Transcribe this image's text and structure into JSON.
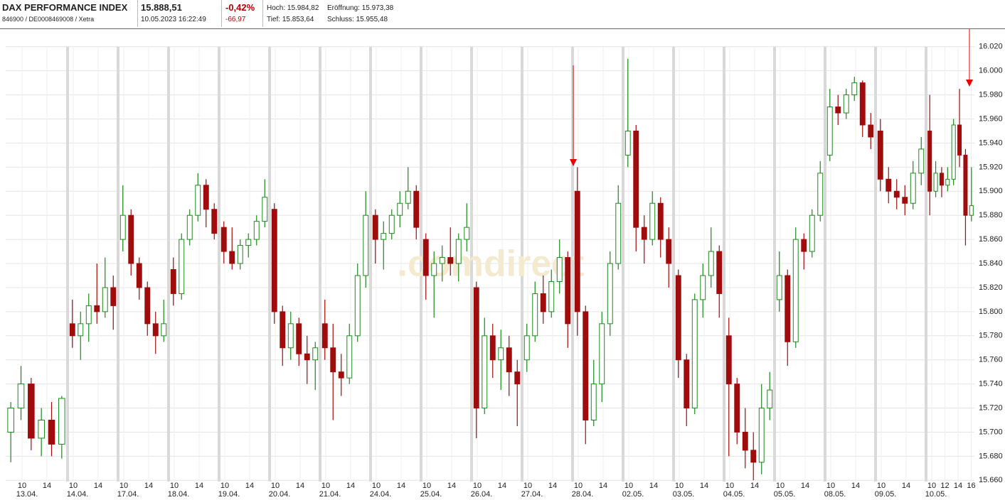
{
  "header": {
    "name": "DAX PERFORMANCE INDEX",
    "ids": "846900 / DE0008469008 / Xetra",
    "price": "15.888,51",
    "timestamp": "10.05.2023 16:22:49",
    "change_pct": "-0,42%",
    "change_abs": "-66,97",
    "high": "Hoch: 15.984,82",
    "open": "Eröffnung: 15.973,38",
    "low": "Tief: 15.853,64",
    "close": "Schluss: 15.955,48"
  },
  "chart_data": {
    "type": "candlestick",
    "watermark": ".comdirect",
    "up_color": "#1a8a1a",
    "down_color": "#a00c0c",
    "ylim": [
      15659,
      16034
    ],
    "yticks": [
      {
        "value": 15660,
        "label": "15.660"
      },
      {
        "value": 15680,
        "label": "15.680"
      },
      {
        "value": 15700,
        "label": "15.700"
      },
      {
        "value": 15720,
        "label": "15.720"
      },
      {
        "value": 15740,
        "label": "15.740"
      },
      {
        "value": 15760,
        "label": "15.760"
      },
      {
        "value": 15780,
        "label": "15.780"
      },
      {
        "value": 15800,
        "label": "15.800"
      },
      {
        "value": 15820,
        "label": "15.820"
      },
      {
        "value": 15840,
        "label": "15.840"
      },
      {
        "value": 15860,
        "label": "15.860"
      },
      {
        "value": 15880,
        "label": "15.880"
      },
      {
        "value": 15900,
        "label": "15.900"
      },
      {
        "value": 15920,
        "label": "15.920"
      },
      {
        "value": 15940,
        "label": "15.940"
      },
      {
        "value": 15960,
        "label": "15.960"
      },
      {
        "value": 15980,
        "label": "15.980"
      },
      {
        "value": 16000,
        "label": "16.000"
      },
      {
        "value": 16020,
        "label": "16.020"
      }
    ],
    "days": [
      {
        "label": "13.04.",
        "ticks": [
          "10",
          "14"
        ],
        "candles": [
          [
            15700,
            15725,
            15675,
            15720
          ],
          [
            15720,
            15755,
            15710,
            15740
          ],
          [
            15740,
            15745,
            15685,
            15695
          ],
          [
            15695,
            15720,
            15680,
            15710
          ],
          [
            15710,
            15725,
            15680,
            15690
          ],
          [
            15690,
            15730,
            15678,
            15728
          ]
        ]
      },
      {
        "label": "14.04.",
        "ticks": [
          "10",
          "14"
        ],
        "candles": [
          [
            15790,
            15810,
            15770,
            15780
          ],
          [
            15780,
            15800,
            15760,
            15790
          ],
          [
            15790,
            15815,
            15775,
            15805
          ],
          [
            15805,
            15840,
            15790,
            15800
          ],
          [
            15800,
            15845,
            15795,
            15820
          ],
          [
            15820,
            15830,
            15785,
            15805
          ]
        ]
      },
      {
        "label": "17.04.",
        "ticks": [
          "10",
          "14"
        ],
        "candles": [
          [
            15860,
            15905,
            15850,
            15880
          ],
          [
            15880,
            15885,
            15830,
            15840
          ],
          [
            15840,
            15845,
            15810,
            15820
          ],
          [
            15820,
            15825,
            15780,
            15790
          ],
          [
            15790,
            15800,
            15765,
            15780
          ],
          [
            15780,
            15810,
            15775,
            15790
          ]
        ]
      },
      {
        "label": "18.04.",
        "ticks": [
          "10",
          "14"
        ],
        "candles": [
          [
            15835,
            15845,
            15805,
            15815
          ],
          [
            15815,
            15865,
            15810,
            15860
          ],
          [
            15860,
            15885,
            15855,
            15880
          ],
          [
            15880,
            15915,
            15875,
            15905
          ],
          [
            15905,
            15910,
            15870,
            15885
          ],
          [
            15885,
            15890,
            15860,
            15865
          ]
        ]
      },
      {
        "label": "19.04.",
        "ticks": [
          "10",
          "14"
        ],
        "candles": [
          [
            15870,
            15875,
            15840,
            15850
          ],
          [
            15850,
            15870,
            15835,
            15840
          ],
          [
            15840,
            15860,
            15835,
            15855
          ],
          [
            15855,
            15865,
            15845,
            15860
          ],
          [
            15860,
            15880,
            15855,
            15875
          ],
          [
            15875,
            15910,
            15870,
            15895
          ]
        ]
      },
      {
        "label": "20.04.",
        "ticks": [
          "10",
          "14"
        ],
        "candles": [
          [
            15885,
            15890,
            15790,
            15800
          ],
          [
            15800,
            15805,
            15755,
            15770
          ],
          [
            15770,
            15800,
            15760,
            15790
          ],
          [
            15790,
            15795,
            15755,
            15765
          ],
          [
            15765,
            15780,
            15740,
            15760
          ],
          [
            15760,
            15775,
            15735,
            15770
          ]
        ]
      },
      {
        "label": "21.04.",
        "ticks": [
          "10",
          "14"
        ],
        "candles": [
          [
            15790,
            15810,
            15760,
            15770
          ],
          [
            15770,
            15790,
            15710,
            15750
          ],
          [
            15750,
            15765,
            15730,
            15745
          ],
          [
            15745,
            15790,
            15740,
            15780
          ],
          [
            15780,
            15840,
            15775,
            15830
          ],
          [
            15830,
            15900,
            15820,
            15880
          ]
        ]
      },
      {
        "label": "24.04.",
        "ticks": [
          "10",
          "14"
        ],
        "candles": [
          [
            15880,
            15885,
            15840,
            15860
          ],
          [
            15860,
            15875,
            15835,
            15865
          ],
          [
            15865,
            15885,
            15860,
            15880
          ],
          [
            15880,
            15900,
            15870,
            15890
          ],
          [
            15890,
            15920,
            15885,
            15900
          ],
          [
            15900,
            15905,
            15860,
            15870
          ]
        ]
      },
      {
        "label": "25.04.",
        "ticks": [
          "10",
          "14"
        ],
        "candles": [
          [
            15860,
            15865,
            15810,
            15830
          ],
          [
            15830,
            15850,
            15795,
            15840
          ],
          [
            15840,
            15855,
            15825,
            15845
          ],
          [
            15845,
            15870,
            15830,
            15840
          ],
          [
            15840,
            15865,
            15825,
            15860
          ],
          [
            15860,
            15890,
            15850,
            15870
          ]
        ]
      },
      {
        "label": "26.04.",
        "ticks": [
          "10",
          "14"
        ],
        "candles": [
          [
            15820,
            15825,
            15695,
            15720
          ],
          [
            15720,
            15795,
            15715,
            15780
          ],
          [
            15780,
            15790,
            15745,
            15760
          ],
          [
            15760,
            15785,
            15735,
            15770
          ],
          [
            15770,
            15780,
            15730,
            15750
          ],
          [
            15750,
            15760,
            15705,
            15740
          ]
        ]
      },
      {
        "label": "27.04.",
        "ticks": [
          "10",
          "14"
        ],
        "candles": [
          [
            15760,
            15790,
            15750,
            15780
          ],
          [
            15780,
            15825,
            15775,
            15815
          ],
          [
            15815,
            15830,
            15790,
            15800
          ],
          [
            15800,
            15835,
            15795,
            15825
          ],
          [
            15825,
            15860,
            15815,
            15845
          ],
          [
            15845,
            15850,
            15770,
            15790
          ]
        ]
      },
      {
        "label": "28.04.",
        "ticks": [
          "10",
          "14"
        ],
        "candles": [
          [
            15900,
            15920,
            15780,
            15800
          ],
          [
            15800,
            15805,
            15690,
            15710
          ],
          [
            15710,
            15760,
            15705,
            15740
          ],
          [
            15740,
            15800,
            15725,
            15790
          ],
          [
            15790,
            15850,
            15780,
            15840
          ],
          [
            15840,
            15905,
            15835,
            15890
          ]
        ]
      },
      {
        "label": "02.05.",
        "ticks": [
          "10",
          "14"
        ],
        "candles": [
          [
            15930,
            16010,
            15920,
            15950
          ],
          [
            15950,
            15955,
            15850,
            15870
          ],
          [
            15870,
            15880,
            15840,
            15860
          ],
          [
            15860,
            15900,
            15855,
            15890
          ],
          [
            15890,
            15895,
            15845,
            15860
          ],
          [
            15860,
            15870,
            15820,
            15840
          ]
        ]
      },
      {
        "label": "03.05.",
        "ticks": [
          "10",
          "14"
        ],
        "candles": [
          [
            15830,
            15835,
            15745,
            15760
          ],
          [
            15760,
            15765,
            15705,
            15720
          ],
          [
            15720,
            15815,
            15715,
            15810
          ],
          [
            15810,
            15840,
            15795,
            15830
          ],
          [
            15830,
            15870,
            15820,
            15850
          ],
          [
            15850,
            15855,
            15795,
            15815
          ]
        ]
      },
      {
        "label": "04.05.",
        "ticks": [
          "10",
          "14"
        ],
        "candles": [
          [
            15780,
            15795,
            15680,
            15740
          ],
          [
            15740,
            15745,
            15690,
            15700
          ],
          [
            15700,
            15720,
            15670,
            15685
          ],
          [
            15685,
            15700,
            15660,
            15675
          ],
          [
            15675,
            15740,
            15665,
            15720
          ],
          [
            15720,
            15750,
            15710,
            15735
          ]
        ]
      },
      {
        "label": "05.05.",
        "ticks": [
          "10",
          "14"
        ],
        "candles": [
          [
            15810,
            15850,
            15800,
            15830
          ],
          [
            15830,
            15835,
            15755,
            15775
          ],
          [
            15775,
            15870,
            15770,
            15860
          ],
          [
            15860,
            15865,
            15835,
            15850
          ],
          [
            15850,
            15885,
            15845,
            15880
          ],
          [
            15880,
            15925,
            15875,
            15915
          ]
        ]
      },
      {
        "label": "08.05.",
        "ticks": [
          "10",
          "14"
        ],
        "candles": [
          [
            15930,
            15985,
            15925,
            15970
          ],
          [
            15970,
            15980,
            15955,
            15965
          ],
          [
            15965,
            15985,
            15960,
            15980
          ],
          [
            15980,
            15995,
            15975,
            15990
          ],
          [
            15990,
            15992,
            15945,
            15955
          ],
          [
            15955,
            15965,
            15935,
            15945
          ]
        ]
      },
      {
        "label": "09.05.",
        "ticks": [
          "10",
          "14"
        ],
        "candles": [
          [
            15950,
            15960,
            15900,
            15910
          ],
          [
            15910,
            15920,
            15890,
            15900
          ],
          [
            15900,
            15910,
            15885,
            15895
          ],
          [
            15895,
            15905,
            15880,
            15890
          ],
          [
            15890,
            15925,
            15885,
            15915
          ],
          [
            15915,
            15945,
            15905,
            15935
          ]
        ]
      },
      {
        "label": "10.05.",
        "ticks": [
          "10",
          "12",
          "14",
          "16"
        ],
        "candles": [
          [
            15950,
            15980,
            15880,
            15900
          ],
          [
            15900,
            15925,
            15895,
            15915
          ],
          [
            15915,
            15920,
            15895,
            15905
          ],
          [
            15905,
            15920,
            15900,
            15910
          ],
          [
            15910,
            15960,
            15905,
            15955
          ],
          [
            15955,
            15985,
            15920,
            15930
          ],
          [
            15930,
            15935,
            15855,
            15880
          ],
          [
            15880,
            15920,
            15875,
            15888
          ]
        ]
      }
    ]
  }
}
